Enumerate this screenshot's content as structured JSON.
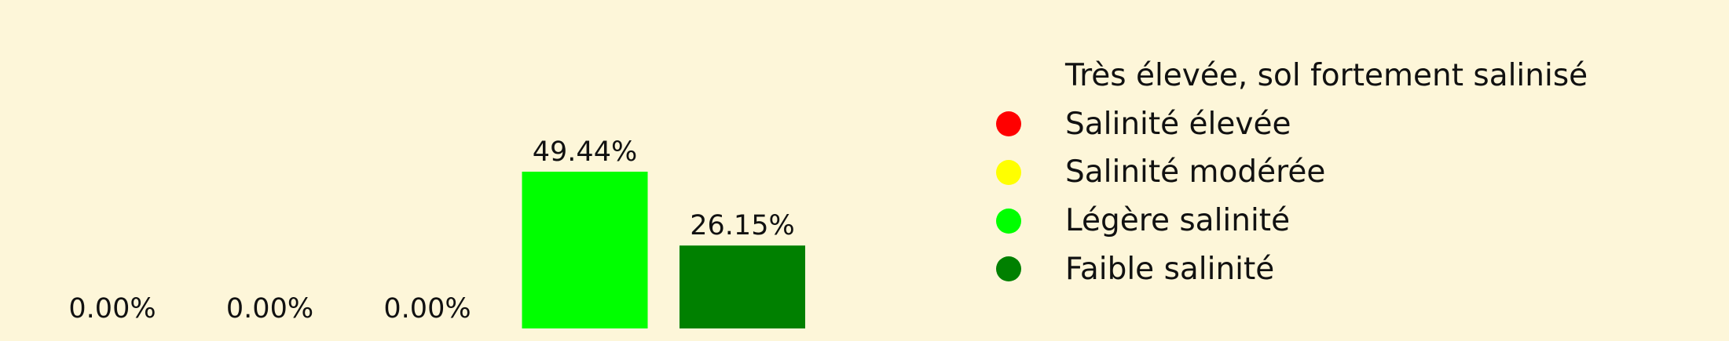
{
  "chart_data": {
    "type": "bar",
    "categories": [
      "Très élevée, sol fortement salinisé",
      "Salinité élevée",
      "Salinité modérée",
      "Légère salinité",
      "Faible salinité"
    ],
    "values": [
      0.0,
      0.0,
      0.0,
      49.44,
      26.15
    ],
    "data_labels": [
      "0.00%",
      "0.00%",
      "0.00%",
      "49.44%",
      "26.15%"
    ],
    "colors": [
      "#8b0000",
      "#ff0000",
      "#ffff00",
      "#00ff00",
      "#008000"
    ],
    "legend": {
      "placement": "right",
      "items": [
        {
          "label": "Très élevée, sol fortement salinisé",
          "color": "#fdf6d9"
        },
        {
          "label": "Salinité élevée",
          "color": "#ff0000"
        },
        {
          "label": "Salinité modérée",
          "color": "#ffff00"
        },
        {
          "label": "Légère salinité",
          "color": "#00ff00"
        },
        {
          "label": "Faible salinité",
          "color": "#008000"
        }
      ]
    },
    "title": "",
    "xlabel": "",
    "ylabel": "",
    "ylim": [
      0,
      80
    ],
    "grid": false,
    "axes_visible": false
  }
}
